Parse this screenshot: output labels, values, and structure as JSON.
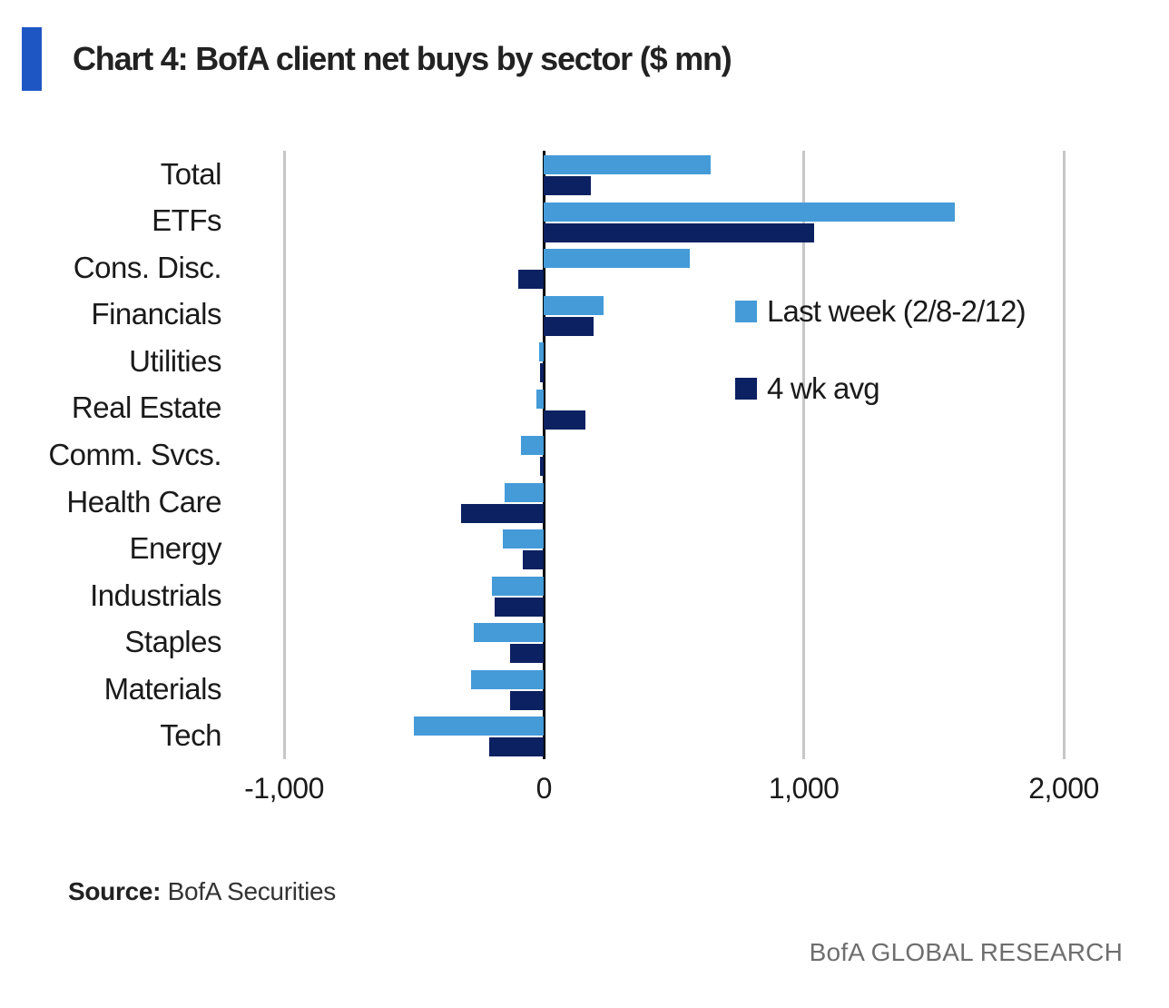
{
  "title": {
    "text": "Chart 4: BofA client net buys by sector ($ mn)"
  },
  "colors": {
    "accent": "#1E57C3",
    "last_week": "#449BD8",
    "four_wk_avg": "#0C2161",
    "gridline": "#C6C6C6",
    "axis": "#000000",
    "footer_text": "#6E6E6E"
  },
  "chart_data": {
    "type": "bar",
    "orientation": "horizontal",
    "title": "Chart 4: BofA client net buys by sector ($ mn)",
    "categories": [
      "Total",
      "ETFs",
      "Cons. Disc.",
      "Financials",
      "Utilities",
      "Real Estate",
      "Comm. Svcs.",
      "Health Care",
      "Energy",
      "Industrials",
      "Staples",
      "Materials",
      "Tech"
    ],
    "series": [
      {
        "name": "Last week (2/8-2/12)",
        "color_key": "last_week",
        "values": [
          640,
          1580,
          560,
          230,
          -20,
          -30,
          -90,
          -150,
          -160,
          -200,
          -270,
          -280,
          -500
        ]
      },
      {
        "name": "4 wk avg",
        "color_key": "four_wk_avg",
        "values": [
          180,
          1040,
          -100,
          190,
          -15,
          160,
          -15,
          -320,
          -80,
          -190,
          -130,
          -130,
          -210
        ]
      }
    ],
    "x_axis": {
      "ticks": [
        -1000,
        0,
        1000,
        2000
      ],
      "tick_labels": [
        "-1,000",
        "0",
        "1,000",
        "2,000"
      ],
      "range": [
        -1150,
        2270
      ]
    },
    "legend": {
      "position": "inside-right",
      "items": [
        "Last week (2/8-2/12)",
        "4 wk avg"
      ]
    },
    "grid": "vertical-only",
    "unit": "$ mn"
  },
  "source": {
    "label": "Source:",
    "text": " BofA Securities"
  },
  "footer": {
    "text": "BofA GLOBAL RESEARCH"
  }
}
